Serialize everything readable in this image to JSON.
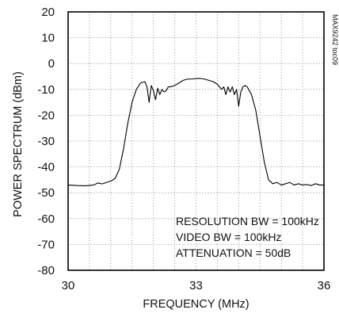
{
  "chart_data": {
    "type": "line",
    "title": "",
    "xlabel": "FREQUENCY (MHz)",
    "ylabel": "POWER SPECTRUM (dBm)",
    "xlim": [
      30,
      36
    ],
    "ylim": [
      -80,
      20
    ],
    "x_ticks": [
      30,
      33,
      36
    ],
    "x_tick_labels": [
      "30",
      "33",
      "36"
    ],
    "y_ticks": [
      20,
      10,
      0,
      -10,
      -20,
      -30,
      -40,
      -50,
      -60,
      -70,
      -80
    ],
    "y_tick_labels": [
      "20",
      "10",
      "0",
      "-10",
      "-20",
      "-30",
      "-40",
      "-50",
      "-60",
      "-70",
      "-80"
    ],
    "x_grid_lines": [
      30.5,
      31,
      31.5,
      32,
      32.5,
      33,
      33.5,
      34,
      34.5,
      35,
      35.5
    ],
    "grid": true,
    "grid_style": "dotted",
    "annotations": [
      "RESOLUTION BW = 100kHz",
      "VIDEO BW = 100kHz",
      "ATTENUATION = 50dB"
    ],
    "side_label": "MAX9242 toc09",
    "series": [
      {
        "color": "#000000",
        "x": [
          30.0,
          30.2,
          30.4,
          30.6,
          30.7,
          30.8,
          30.9,
          31.0,
          31.1,
          31.2,
          31.3,
          31.4,
          31.5,
          31.6,
          31.7,
          31.8,
          31.85,
          31.9,
          31.95,
          32.0,
          32.05,
          32.1,
          32.15,
          32.2,
          32.25,
          32.3,
          32.35,
          32.4,
          32.5,
          32.6,
          32.7,
          32.8,
          32.9,
          33.0,
          33.1,
          33.2,
          33.3,
          33.4,
          33.5,
          33.6,
          33.65,
          33.7,
          33.75,
          33.8,
          33.85,
          33.9,
          33.95,
          34.0,
          34.05,
          34.1,
          34.15,
          34.2,
          34.3,
          34.4,
          34.5,
          34.6,
          34.7,
          34.8,
          34.9,
          35.0,
          35.1,
          35.2,
          35.3,
          35.4,
          35.5,
          35.6,
          35.7,
          35.8,
          35.9,
          36.0
        ],
        "y": [
          -47.0,
          -47.2,
          -47.3,
          -47.0,
          -46.2,
          -46.6,
          -46.0,
          -45.5,
          -44.5,
          -41.0,
          -33.0,
          -23.0,
          -15.0,
          -10.0,
          -7.5,
          -7.0,
          -9.0,
          -15.0,
          -8.5,
          -10.5,
          -14.0,
          -9.5,
          -12.0,
          -10.0,
          -11.0,
          -10.5,
          -9.0,
          -9.0,
          -8.5,
          -7.5,
          -6.5,
          -6.0,
          -6.0,
          -5.8,
          -5.8,
          -6.0,
          -6.5,
          -7.0,
          -8.0,
          -10.0,
          -9.0,
          -12.0,
          -9.0,
          -11.0,
          -9.0,
          -12.0,
          -10.0,
          -16.5,
          -11.0,
          -9.0,
          -8.5,
          -9.0,
          -12.0,
          -18.0,
          -28.0,
          -38.0,
          -45.0,
          -46.5,
          -46.0,
          -47.0,
          -46.5,
          -46.0,
          -47.0,
          -46.5,
          -47.0,
          -46.8,
          -47.2,
          -46.5,
          -47.0,
          -47.0
        ]
      }
    ]
  }
}
